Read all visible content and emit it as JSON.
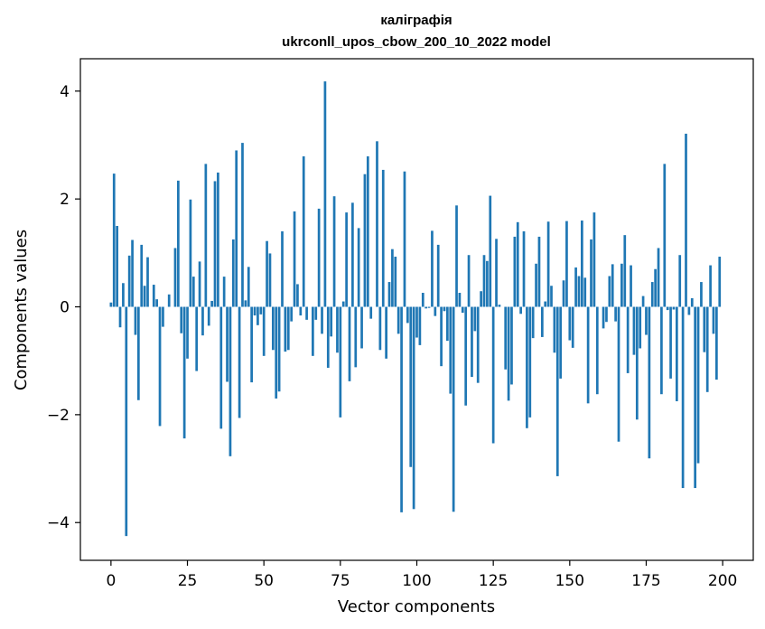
{
  "chart_data": {
    "type": "bar",
    "title": "калiграфiя",
    "subtitle": "ukrconll_upos_cbow_200_10_2022 model",
    "xlabel": "Vector components",
    "ylabel": "Components values",
    "xlim": [
      -10,
      210
    ],
    "ylim": [
      -4.7,
      4.6
    ],
    "xticks": [
      0,
      25,
      50,
      75,
      100,
      125,
      150,
      175,
      200
    ],
    "xtick_labels": [
      "0",
      "25",
      "50",
      "75",
      "100",
      "125",
      "150",
      "175",
      "200"
    ],
    "yticks": [
      -4,
      -2,
      0,
      2,
      4
    ],
    "ytick_labels": [
      "−4",
      "−2",
      "0",
      "2",
      "4"
    ],
    "grid": false,
    "bar_color": "#1f77b4",
    "x": [
      0,
      1,
      2,
      3,
      4,
      5,
      6,
      7,
      8,
      9,
      10,
      11,
      12,
      13,
      14,
      15,
      16,
      17,
      18,
      19,
      20,
      21,
      22,
      23,
      24,
      25,
      26,
      27,
      28,
      29,
      30,
      31,
      32,
      33,
      34,
      35,
      36,
      37,
      38,
      39,
      40,
      41,
      42,
      43,
      44,
      45,
      46,
      47,
      48,
      49,
      50,
      51,
      52,
      53,
      54,
      55,
      56,
      57,
      58,
      59,
      60,
      61,
      62,
      63,
      64,
      65,
      66,
      67,
      68,
      69,
      70,
      71,
      72,
      73,
      74,
      75,
      76,
      77,
      78,
      79,
      80,
      81,
      82,
      83,
      84,
      85,
      86,
      87,
      88,
      89,
      90,
      91,
      92,
      93,
      94,
      95,
      96,
      97,
      98,
      99,
      100,
      101,
      102,
      103,
      104,
      105,
      106,
      107,
      108,
      109,
      110,
      111,
      112,
      113,
      114,
      115,
      116,
      117,
      118,
      119,
      120,
      121,
      122,
      123,
      124,
      125,
      126,
      127,
      128,
      129,
      130,
      131,
      132,
      133,
      134,
      135,
      136,
      137,
      138,
      139,
      140,
      141,
      142,
      143,
      144,
      145,
      146,
      147,
      148,
      149,
      150,
      151,
      152,
      153,
      154,
      155,
      156,
      157,
      158,
      159,
      160,
      161,
      162,
      163,
      164,
      165,
      166,
      167,
      168,
      169,
      170,
      171,
      172,
      173,
      174,
      175,
      176,
      177,
      178,
      179,
      180,
      181,
      182,
      183,
      184,
      185,
      186,
      187,
      188,
      189,
      190,
      191,
      192,
      193,
      194,
      195,
      196,
      197,
      198,
      199
    ],
    "values": [
      0.08,
      2.47,
      1.5,
      -0.38,
      0.44,
      -4.25,
      0.95,
      1.24,
      -0.52,
      -1.73,
      1.15,
      0.39,
      0.92,
      0.0,
      0.41,
      0.14,
      -2.21,
      -0.37,
      0.0,
      0.23,
      0.0,
      1.09,
      2.34,
      -0.49,
      -2.44,
      -0.96,
      1.99,
      0.56,
      -1.19,
      0.84,
      -0.53,
      2.65,
      -0.35,
      0.11,
      2.33,
      2.49,
      -2.26,
      0.56,
      -1.39,
      -2.77,
      1.25,
      2.9,
      -2.06,
      3.04,
      0.12,
      0.74,
      -1.4,
      -0.16,
      -0.34,
      -0.14,
      -0.91,
      1.22,
      0.99,
      -0.8,
      -1.7,
      -1.57,
      1.4,
      -0.83,
      -0.8,
      -0.27,
      1.77,
      0.42,
      -0.16,
      2.79,
      -0.24,
      0.0,
      -0.91,
      -0.24,
      1.82,
      -0.5,
      4.18,
      -1.13,
      -0.55,
      2.05,
      -0.85,
      -2.05,
      0.1,
      1.75,
      -1.38,
      1.93,
      -1.12,
      1.46,
      -0.77,
      2.46,
      2.79,
      -0.22,
      0.0,
      3.07,
      -0.8,
      2.54,
      -0.96,
      0.46,
      1.07,
      0.93,
      -0.5,
      -3.81,
      2.51,
      -0.3,
      -2.97,
      -3.75,
      -0.57,
      -0.71,
      0.26,
      -0.03,
      -0.02,
      1.41,
      -0.17,
      1.15,
      -1.1,
      -0.08,
      -0.63,
      -1.61,
      -3.8,
      1.88,
      0.26,
      -0.11,
      -1.83,
      0.96,
      -1.3,
      -0.45,
      -1.41,
      0.29,
      0.96,
      0.85,
      2.06,
      -2.53,
      1.26,
      0.04,
      0.0,
      -1.16,
      -1.74,
      -1.44,
      1.3,
      1.57,
      -0.13,
      1.4,
      -2.25,
      -2.05,
      -0.58,
      0.8,
      1.3,
      -0.56,
      0.1,
      1.58,
      0.39,
      -0.85,
      -3.14,
      -1.33,
      0.49,
      1.59,
      -0.62,
      -0.76,
      0.73,
      0.57,
      1.6,
      0.54,
      -1.79,
      1.25,
      1.75,
      -1.62,
      0.0,
      -0.4,
      -0.28,
      0.57,
      0.79,
      -0.27,
      -2.5,
      0.8,
      1.33,
      -1.23,
      0.77,
      -0.89,
      -2.09,
      -0.77,
      0.2,
      -0.52,
      -2.81,
      0.46,
      0.7,
      1.09,
      -1.62,
      2.65,
      -0.06,
      -1.33,
      -0.05,
      -1.75,
      0.96,
      -3.36,
      3.21,
      -0.15,
      0.16,
      -3.36,
      -2.9,
      0.46,
      -0.84,
      -1.58,
      0.77,
      -0.5,
      -1.35,
      0.93
    ]
  }
}
